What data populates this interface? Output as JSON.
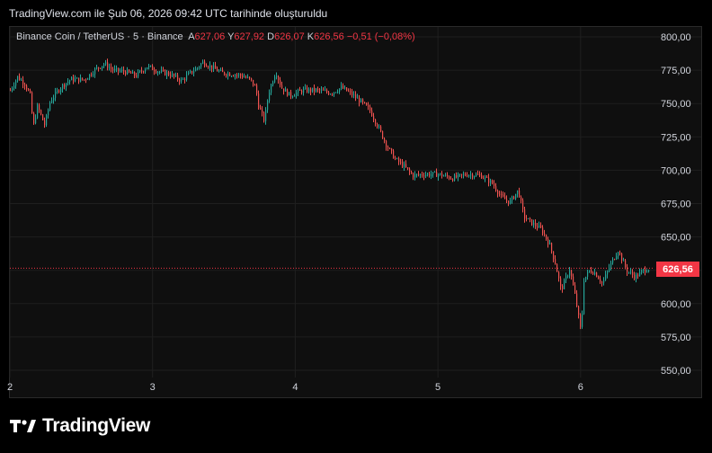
{
  "caption": "TradingView.com ile Şub 06, 2026 09:42 UTC tarihinde oluşturuldu",
  "logo": {
    "text": "TradingView",
    "icon": "tradingview-logo-icon"
  },
  "legend": {
    "symbol": "Binance Coin / TetherUS · 5 · Binance",
    "open_label": "A",
    "open": "627,06",
    "high_label": "Y",
    "high": "627,92",
    "low_label": "D",
    "low": "626,07",
    "close_label": "K",
    "close": "626,56",
    "change": "−0,51 (−0,08%)"
  },
  "colors": {
    "up": "#26a69a",
    "down": "#ef5350",
    "price_line": "#f23645",
    "grid": "#1f1f1f"
  },
  "chart_data": {
    "type": "candlestick",
    "ylim": [
      550,
      800
    ],
    "y_ticks": [
      {
        "value": 800,
        "label": "800,00"
      },
      {
        "value": 775,
        "label": "775,00"
      },
      {
        "value": 750,
        "label": "750,00"
      },
      {
        "value": 725,
        "label": "725,00"
      },
      {
        "value": 700,
        "label": "700,00"
      },
      {
        "value": 675,
        "label": "675,00"
      },
      {
        "value": 650,
        "label": "650,00"
      },
      {
        "value": 625,
        "label": "625,00"
      },
      {
        "value": 600,
        "label": "600,00"
      },
      {
        "value": 575,
        "label": "575,00"
      },
      {
        "value": 550,
        "label": "550,00"
      }
    ],
    "x_ticks": [
      {
        "day": 2,
        "label": "2"
      },
      {
        "day": 3,
        "label": "3"
      },
      {
        "day": 4,
        "label": "4"
      },
      {
        "day": 5,
        "label": "5"
      },
      {
        "day": 6,
        "label": "6"
      }
    ],
    "xlim_days": [
      2.0,
      6.48
    ],
    "last_price": 626.56,
    "last_price_label": "626,56",
    "path": [
      [
        2.0,
        760
      ],
      [
        2.05,
        770
      ],
      [
        2.1,
        765
      ],
      [
        2.14,
        756
      ],
      [
        2.16,
        732
      ],
      [
        2.19,
        748
      ],
      [
        2.24,
        734
      ],
      [
        2.28,
        752
      ],
      [
        2.35,
        762
      ],
      [
        2.42,
        768
      ],
      [
        2.52,
        768
      ],
      [
        2.6,
        776
      ],
      [
        2.66,
        780
      ],
      [
        2.72,
        775
      ],
      [
        2.8,
        774
      ],
      [
        2.88,
        771
      ],
      [
        2.96,
        778
      ],
      [
        3.04,
        774
      ],
      [
        3.12,
        772
      ],
      [
        3.2,
        767
      ],
      [
        3.25,
        772
      ],
      [
        3.3,
        776
      ],
      [
        3.35,
        781
      ],
      [
        3.4,
        778
      ],
      [
        3.48,
        773
      ],
      [
        3.56,
        772
      ],
      [
        3.62,
        771
      ],
      [
        3.68,
        768
      ],
      [
        3.72,
        762
      ],
      [
        3.74,
        748
      ],
      [
        3.78,
        737
      ],
      [
        3.81,
        758
      ],
      [
        3.86,
        774
      ],
      [
        3.9,
        762
      ],
      [
        3.96,
        756
      ],
      [
        4.05,
        760
      ],
      [
        4.15,
        760
      ],
      [
        4.25,
        758
      ],
      [
        4.32,
        762
      ],
      [
        4.38,
        758
      ],
      [
        4.45,
        752
      ],
      [
        4.52,
        745
      ],
      [
        4.58,
        732
      ],
      [
        4.64,
        718
      ],
      [
        4.7,
        708
      ],
      [
        4.76,
        703
      ],
      [
        4.82,
        696
      ],
      [
        4.9,
        697
      ],
      [
        5.0,
        697
      ],
      [
        5.1,
        694
      ],
      [
        5.2,
        697
      ],
      [
        5.3,
        696
      ],
      [
        5.38,
        690
      ],
      [
        5.44,
        680
      ],
      [
        5.5,
        676
      ],
      [
        5.56,
        685
      ],
      [
        5.6,
        665
      ],
      [
        5.66,
        660
      ],
      [
        5.72,
        656
      ],
      [
        5.78,
        644
      ],
      [
        5.82,
        630
      ],
      [
        5.86,
        610
      ],
      [
        5.92,
        626
      ],
      [
        5.96,
        605
      ],
      [
        6.0,
        578
      ],
      [
        6.02,
        618
      ],
      [
        6.06,
        625
      ],
      [
        6.1,
        623
      ],
      [
        6.15,
        615
      ],
      [
        6.2,
        628
      ],
      [
        6.26,
        640
      ],
      [
        6.32,
        625
      ],
      [
        6.38,
        620
      ],
      [
        6.44,
        625
      ],
      [
        6.48,
        626.56
      ]
    ]
  }
}
